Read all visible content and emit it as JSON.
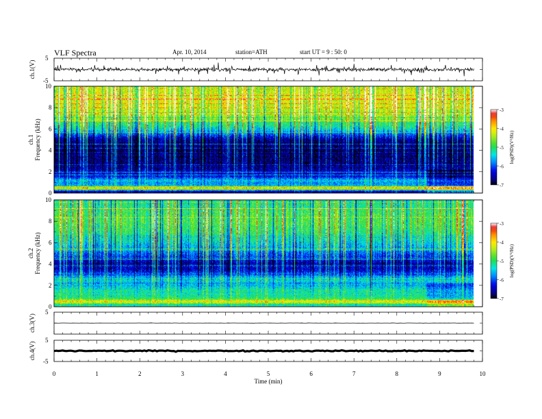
{
  "header": {
    "title": "VLF Spectra",
    "date": "Apr. 10, 2014",
    "station": "station=ATH",
    "start": "start UT =  9 : 50: 0"
  },
  "chart_data": [
    {
      "type": "line",
      "ylabel": "ch.1(V)",
      "ylim": [
        -5,
        5
      ],
      "y_ticks": [
        "5",
        "-5"
      ],
      "x_range_min": [
        0,
        9.8
      ],
      "baseline": 0,
      "amplitude": 0.7,
      "spike_amplitude": 2.5
    },
    {
      "type": "heatmap",
      "ylabel": "ch.1",
      "ylabel2": "Frequency (kHz)",
      "ylim": [
        0,
        10
      ],
      "y_ticks": [
        0,
        2,
        4,
        6,
        8,
        10
      ],
      "x_range_min": [
        0,
        9.8
      ],
      "colorbar": {
        "label": "log(PSD)(V²/Hz)",
        "range": [
          -7,
          -3
        ],
        "ticks": [
          -3,
          -4,
          -5,
          -6,
          -7
        ]
      },
      "profile_khz_vs_logpsd": [
        [
          0.2,
          -6.5
        ],
        [
          0.5,
          -3.6
        ],
        [
          0.8,
          -6.0
        ],
        [
          1.2,
          -5.5
        ],
        [
          1.6,
          -6.3
        ],
        [
          2.0,
          -6.4
        ],
        [
          2.5,
          -6.7
        ],
        [
          3.0,
          -6.7
        ],
        [
          4.0,
          -6.8
        ],
        [
          5.0,
          -6.6
        ],
        [
          6.0,
          -5.4
        ],
        [
          7.0,
          -4.6
        ],
        [
          8.0,
          -4.3
        ],
        [
          9.0,
          -4.2
        ],
        [
          10.0,
          -4.5
        ]
      ],
      "late_change_min": 8.7
    },
    {
      "type": "heatmap",
      "ylabel": "ch.2",
      "ylabel2": "Frequency (kHz)",
      "ylim": [
        0,
        10
      ],
      "y_ticks": [
        0,
        2,
        4,
        6,
        8,
        10
      ],
      "x_range_min": [
        0,
        9.8
      ],
      "colorbar": {
        "label": "log(PSD)(V²/Hz)",
        "range": [
          -7,
          -3
        ],
        "ticks": [
          -3,
          -4,
          -5,
          -6,
          -7
        ]
      },
      "profile_khz_vs_logpsd": [
        [
          0.2,
          -5.2
        ],
        [
          0.5,
          -4.0
        ],
        [
          0.8,
          -5.0
        ],
        [
          1.2,
          -5.3
        ],
        [
          1.6,
          -5.2
        ],
        [
          2.0,
          -5.6
        ],
        [
          2.5,
          -5.4
        ],
        [
          3.0,
          -5.8
        ],
        [
          3.5,
          -6.4
        ],
        [
          4.0,
          -6.6
        ],
        [
          4.5,
          -6.2
        ],
        [
          5.0,
          -5.9
        ],
        [
          6.0,
          -5.4
        ],
        [
          7.0,
          -5.0
        ],
        [
          8.0,
          -4.8
        ],
        [
          9.0,
          -4.9
        ],
        [
          10.0,
          -5.2
        ]
      ],
      "late_change_min": 8.7
    },
    {
      "type": "line",
      "ylabel": "ch.3(V)",
      "ylim": [
        -5,
        5
      ],
      "y_ticks": [
        "5"
      ],
      "x_range_min": [
        0,
        9.8
      ],
      "baseline": 0,
      "amplitude": 0.05
    },
    {
      "type": "line",
      "ylabel": "ch.4(V)",
      "ylim": [
        -5,
        5
      ],
      "y_ticks": [
        "5",
        "-5"
      ],
      "x_range_min": [
        0,
        9.8
      ],
      "baseline": 0,
      "amplitude": 0.25,
      "xlabel": "Time  (min)",
      "x_ticks": [
        0,
        1,
        2,
        3,
        4,
        5,
        6,
        7,
        8,
        9,
        10
      ],
      "xlim": [
        0,
        10
      ]
    }
  ]
}
